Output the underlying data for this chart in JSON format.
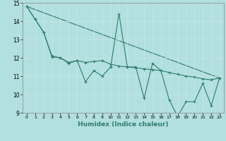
{
  "xlabel": "Humidex (Indice chaleur)",
  "ylabel": "",
  "xlim": [
    -0.5,
    23.5
  ],
  "ylim": [
    9,
    15
  ],
  "yticks": [
    9,
    10,
    11,
    12,
    13,
    14,
    15
  ],
  "xticks": [
    0,
    1,
    2,
    3,
    4,
    5,
    6,
    7,
    8,
    9,
    10,
    11,
    12,
    13,
    14,
    15,
    16,
    17,
    18,
    19,
    20,
    21,
    22,
    23
  ],
  "bg_color": "#b2dfdf",
  "grid_color": "#d4eeee",
  "line_color": "#2e7d6e",
  "line1": {
    "x": [
      0,
      1,
      2,
      3,
      4,
      5,
      6,
      7,
      8,
      9,
      10,
      11,
      12,
      13,
      14,
      15,
      16,
      17,
      18,
      19,
      20,
      21,
      22,
      23
    ],
    "y": [
      14.8,
      14.1,
      13.4,
      12.1,
      12.0,
      11.7,
      11.85,
      10.7,
      11.3,
      11.0,
      11.5,
      14.4,
      11.5,
      11.5,
      9.8,
      11.7,
      11.3,
      9.7,
      8.8,
      9.6,
      9.6,
      10.6,
      9.4,
      10.9
    ]
  },
  "line2": {
    "x": [
      0,
      1,
      2,
      3,
      4,
      5,
      6,
      7,
      8,
      9,
      10,
      11,
      12,
      13,
      14,
      15,
      16,
      17,
      18,
      19,
      20,
      21,
      22,
      23
    ],
    "y": [
      14.8,
      14.1,
      13.4,
      12.05,
      12.0,
      11.75,
      11.85,
      11.75,
      11.8,
      11.85,
      11.65,
      11.55,
      11.5,
      11.45,
      11.4,
      11.35,
      11.3,
      11.2,
      11.1,
      11.0,
      10.95,
      10.85,
      10.8,
      10.9
    ]
  },
  "line3_x": [
    0,
    23
  ],
  "line3_y": [
    14.8,
    10.9
  ]
}
